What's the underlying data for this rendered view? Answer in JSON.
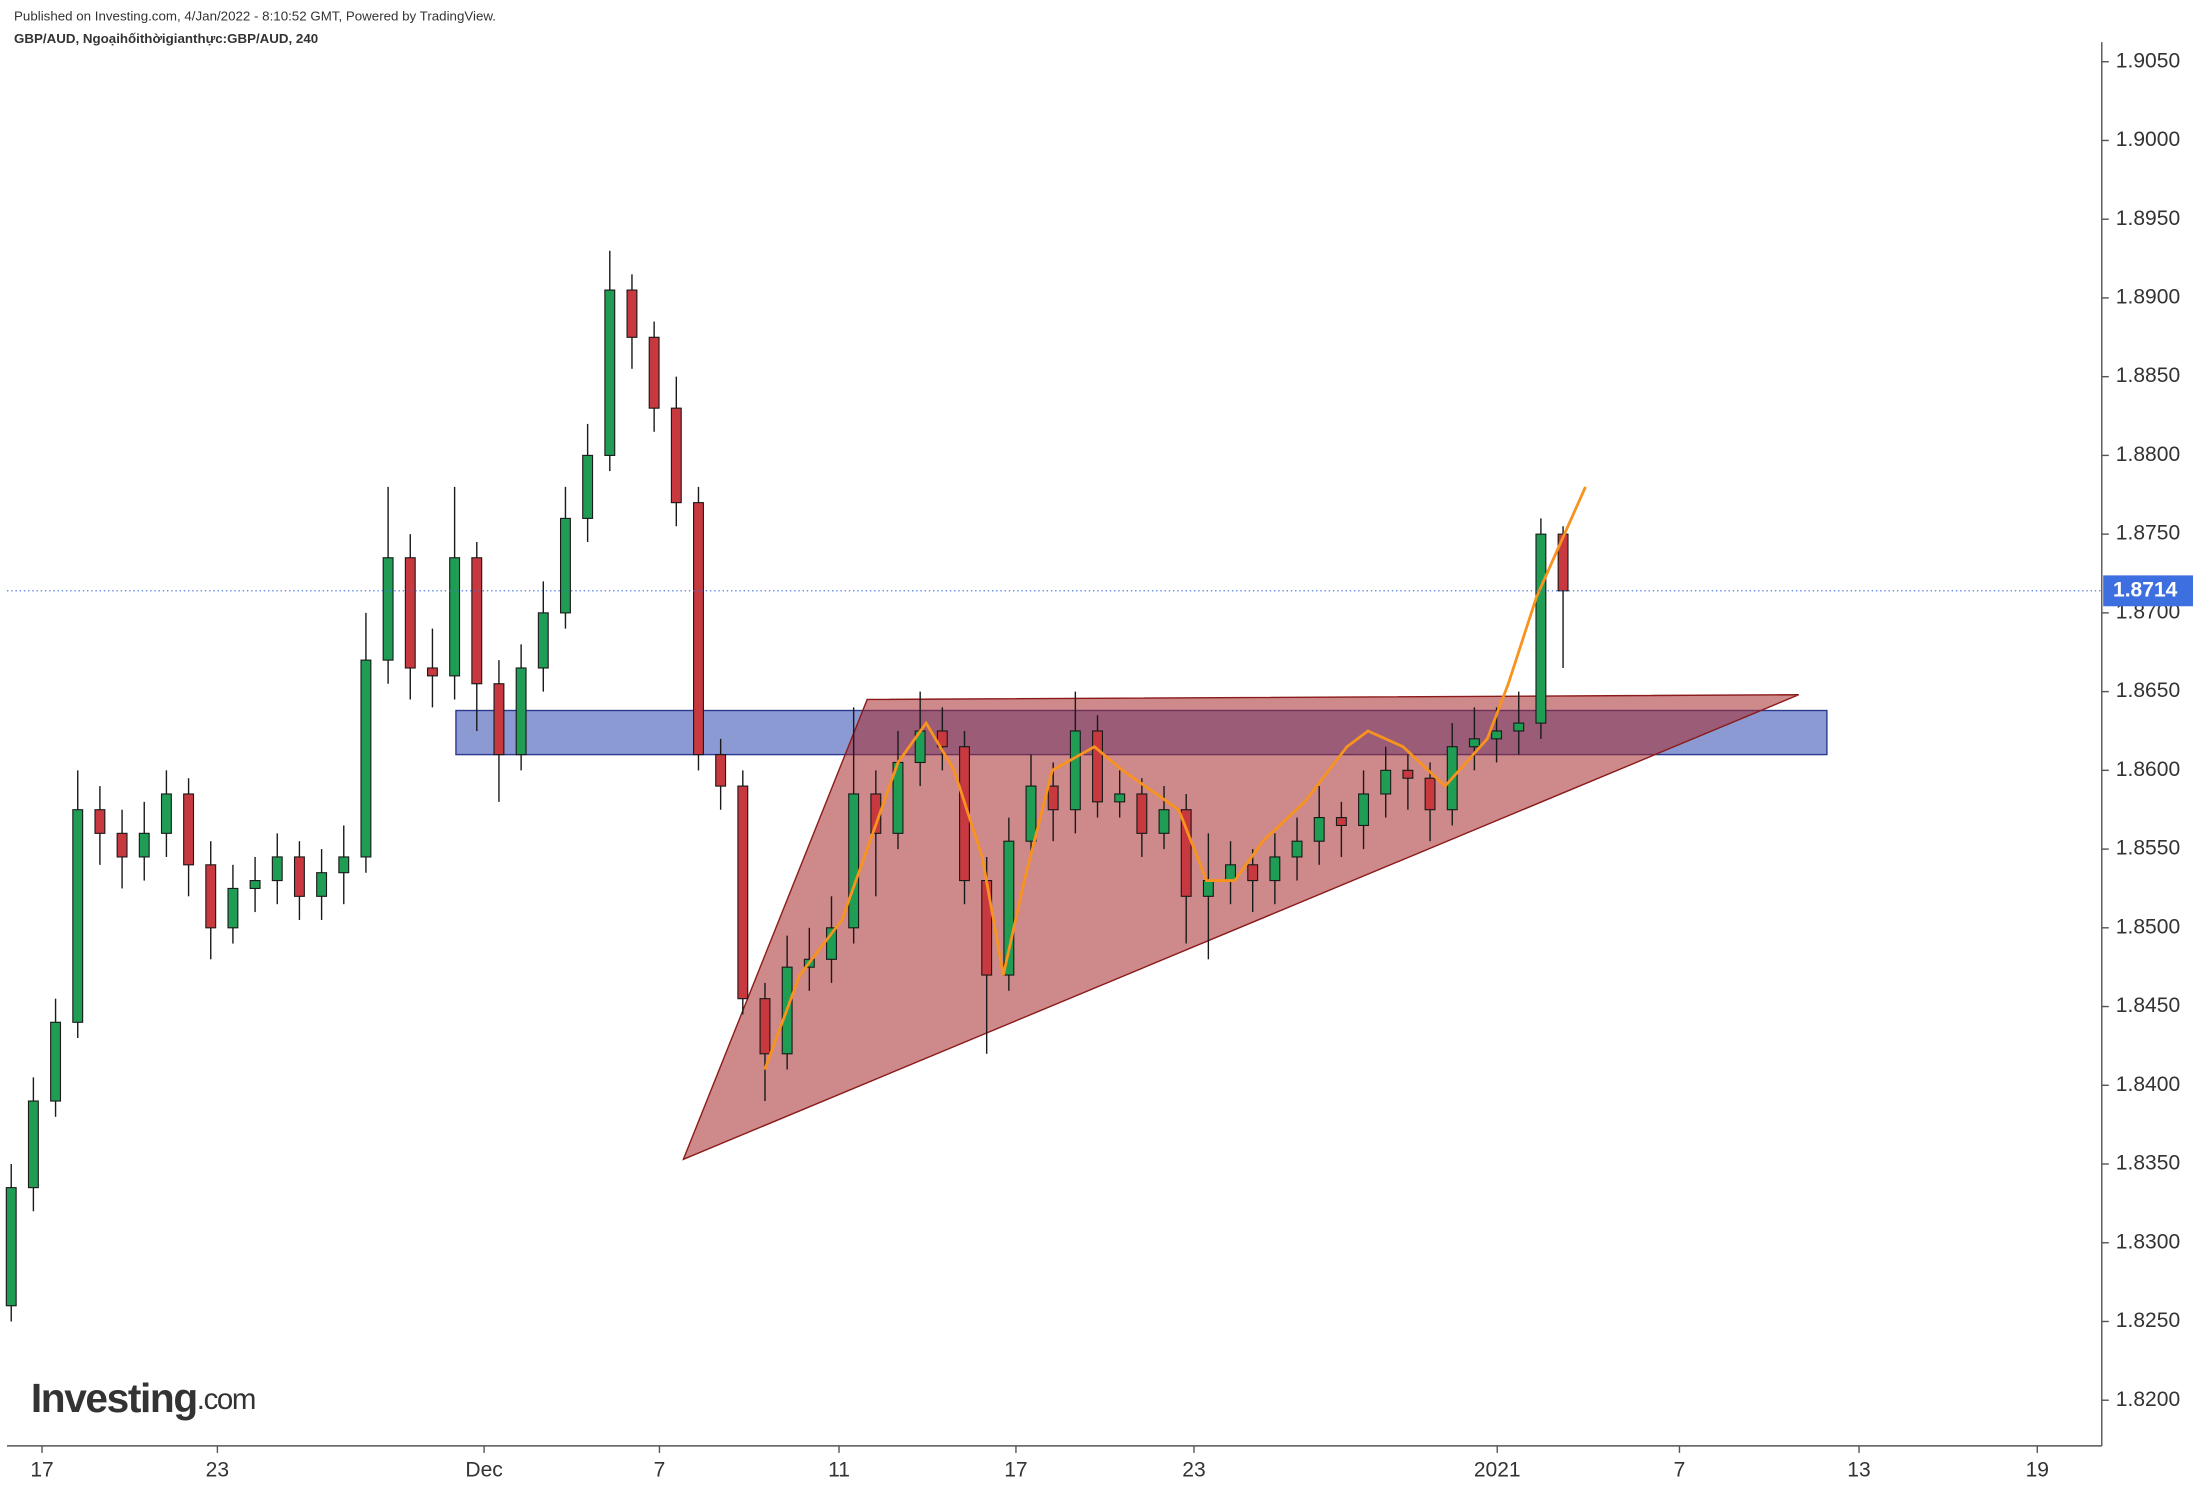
{
  "chart_data": {
    "type": "candlestick",
    "header": "Published on Investing.com, 4/Jan/2022 - 8:10:52 GMT, Powered by TradingView.",
    "title": "GBP/AUD, Ngoạihốithờigianthực:GBP/AUD, 240",
    "logo": {
      "brand": "Investing",
      "suffix": ".com"
    },
    "up_color": "#1f9d55",
    "down_color": "#c8393f",
    "open": [
      1.826,
      1.8335,
      1.839,
      1.844,
      1.8575,
      1.856,
      1.8545,
      1.856,
      1.8585,
      1.854,
      1.85,
      1.8525,
      1.853,
      1.8545,
      1.852,
      1.8535,
      1.8545,
      1.867,
      1.8735,
      1.8665,
      1.866,
      1.8735,
      1.8655,
      1.861,
      1.8665,
      1.87,
      1.876,
      1.88,
      1.8905,
      1.8875,
      1.883,
      1.877,
      1.861,
      1.859,
      1.8455,
      1.842,
      1.8475,
      1.848,
      1.85,
      1.8585,
      1.856,
      1.8605,
      1.8625,
      1.8615,
      1.853,
      1.847,
      1.8555,
      1.859,
      1.8575,
      1.8625,
      1.858,
      1.8585,
      1.856,
      1.8575,
      1.852,
      1.853,
      1.854,
      1.853,
      1.8545,
      1.8555,
      1.857,
      1.8565,
      1.8585,
      1.86,
      1.8595,
      1.8575,
      1.8615,
      1.862,
      1.8625,
      1.863,
      1.875
    ],
    "high": [
      1.835,
      1.8405,
      1.8455,
      1.86,
      1.859,
      1.8575,
      1.858,
      1.86,
      1.8595,
      1.8555,
      1.854,
      1.8545,
      1.856,
      1.8555,
      1.855,
      1.8565,
      1.87,
      1.878,
      1.875,
      1.869,
      1.878,
      1.8745,
      1.867,
      1.868,
      1.872,
      1.878,
      1.882,
      1.893,
      1.8915,
      1.8885,
      1.885,
      1.878,
      1.862,
      1.86,
      1.8465,
      1.8495,
      1.85,
      1.852,
      1.864,
      1.86,
      1.8625,
      1.865,
      1.864,
      1.8625,
      1.8545,
      1.857,
      1.861,
      1.8605,
      1.865,
      1.8635,
      1.86,
      1.8595,
      1.859,
      1.8585,
      1.856,
      1.8555,
      1.855,
      1.856,
      1.857,
      1.859,
      1.858,
      1.86,
      1.8615,
      1.861,
      1.8605,
      1.863,
      1.864,
      1.864,
      1.865,
      1.876,
      1.8755
    ],
    "low": [
      1.825,
      1.832,
      1.838,
      1.843,
      1.854,
      1.8525,
      1.853,
      1.8545,
      1.852,
      1.848,
      1.849,
      1.851,
      1.8515,
      1.8505,
      1.8505,
      1.8515,
      1.8535,
      1.8655,
      1.8645,
      1.864,
      1.8645,
      1.8625,
      1.858,
      1.86,
      1.865,
      1.869,
      1.8745,
      1.879,
      1.8855,
      1.8815,
      1.8755,
      1.86,
      1.8575,
      1.8445,
      1.839,
      1.841,
      1.846,
      1.8465,
      1.849,
      1.852,
      1.855,
      1.859,
      1.86,
      1.8515,
      1.842,
      1.846,
      1.8545,
      1.8555,
      1.856,
      1.857,
      1.857,
      1.8545,
      1.855,
      1.849,
      1.848,
      1.8515,
      1.851,
      1.8515,
      1.853,
      1.854,
      1.8545,
      1.855,
      1.857,
      1.8575,
      1.8555,
      1.8565,
      1.86,
      1.8605,
      1.861,
      1.862,
      1.8665
    ],
    "close": [
      1.8335,
      1.839,
      1.844,
      1.8575,
      1.856,
      1.8545,
      1.856,
      1.8585,
      1.854,
      1.85,
      1.8525,
      1.853,
      1.8545,
      1.852,
      1.8535,
      1.8545,
      1.867,
      1.8735,
      1.8665,
      1.866,
      1.8735,
      1.8655,
      1.861,
      1.8665,
      1.87,
      1.876,
      1.88,
      1.8905,
      1.8875,
      1.883,
      1.877,
      1.861,
      1.859,
      1.8455,
      1.842,
      1.8475,
      1.848,
      1.85,
      1.8585,
      1.856,
      1.8605,
      1.8625,
      1.8615,
      1.853,
      1.847,
      1.8555,
      1.859,
      1.8575,
      1.8625,
      1.858,
      1.8585,
      1.856,
      1.8575,
      1.852,
      1.853,
      1.854,
      1.853,
      1.8545,
      1.8555,
      1.857,
      1.8565,
      1.8585,
      1.86,
      1.8595,
      1.8575,
      1.8615,
      1.862,
      1.8625,
      1.863,
      1.875,
      1.8714
    ],
    "moving_average": {
      "color": "#f7931e",
      "x": [
        33.99,
        35.57,
        37.47,
        40.0,
        41.27,
        42.53,
        43.8,
        44.75,
        45.7,
        46.96,
        48.86,
        50.13,
        52.66,
        53.92,
        55.19,
        56.46,
        58.35,
        60.25,
        61.2,
        62.78,
        64.68,
        66.58,
        67.53,
        68.8,
        70.06,
        71.01
      ],
      "values": [
        1.841,
        1.847,
        1.8505,
        1.8605,
        1.863,
        1.86,
        1.8545,
        1.847,
        1.853,
        1.86,
        1.8615,
        1.86,
        1.8575,
        1.853,
        1.853,
        1.8555,
        1.858,
        1.8615,
        1.8625,
        1.8615,
        1.859,
        1.862,
        1.8655,
        1.871,
        1.875,
        1.878
      ]
    },
    "zone": {
      "color": "#5b6fc0",
      "x": [
        20.06,
        81.9
      ],
      "y": [
        1.861,
        1.8638
      ]
    },
    "triangle": {
      "color": "#a52a2a",
      "x": [
        30.32,
        38.61,
        80.63
      ],
      "y": [
        1.8353,
        1.8645,
        1.8648
      ]
    },
    "last_price": {
      "value": 1.8714,
      "label": "1.8714",
      "color": "#3d6fe0"
    },
    "xlim": [
      -0.19,
      94.3
    ],
    "xticks": [
      {
        "value": 1.39,
        "label": "17"
      },
      {
        "value": 9.3,
        "label": "23"
      },
      {
        "value": 21.33,
        "label": "Dec"
      },
      {
        "value": 29.24,
        "label": "7"
      },
      {
        "value": 37.34,
        "label": "11"
      },
      {
        "value": 45.32,
        "label": "17"
      },
      {
        "value": 53.35,
        "label": "23"
      },
      {
        "value": 67.03,
        "label": "2021"
      },
      {
        "value": 75.25,
        "label": "7"
      },
      {
        "value": 83.35,
        "label": "13"
      },
      {
        "value": 91.39,
        "label": "19"
      }
    ],
    "ylim": [
      1.8171,
      1.9058
    ],
    "yticks": [
      {
        "value": 1.82,
        "label": "1.8200"
      },
      {
        "value": 1.825,
        "label": "1.8250"
      },
      {
        "value": 1.83,
        "label": "1.8300"
      },
      {
        "value": 1.835,
        "label": "1.8350"
      },
      {
        "value": 1.84,
        "label": "1.8400"
      },
      {
        "value": 1.845,
        "label": "1.8450"
      },
      {
        "value": 1.85,
        "label": "1.8500"
      },
      {
        "value": 1.855,
        "label": "1.8550"
      },
      {
        "value": 1.86,
        "label": "1.8600"
      },
      {
        "value": 1.865,
        "label": "1.8650"
      },
      {
        "value": 1.87,
        "label": "1.8700"
      },
      {
        "value": 1.875,
        "label": "1.8750"
      },
      {
        "value": 1.88,
        "label": "1.8800"
      },
      {
        "value": 1.885,
        "label": "1.8850"
      },
      {
        "value": 1.89,
        "label": "1.8900"
      },
      {
        "value": 1.895,
        "label": "1.8950"
      },
      {
        "value": 1.9,
        "label": "1.9000"
      },
      {
        "value": 1.905,
        "label": "1.9050"
      }
    ]
  }
}
